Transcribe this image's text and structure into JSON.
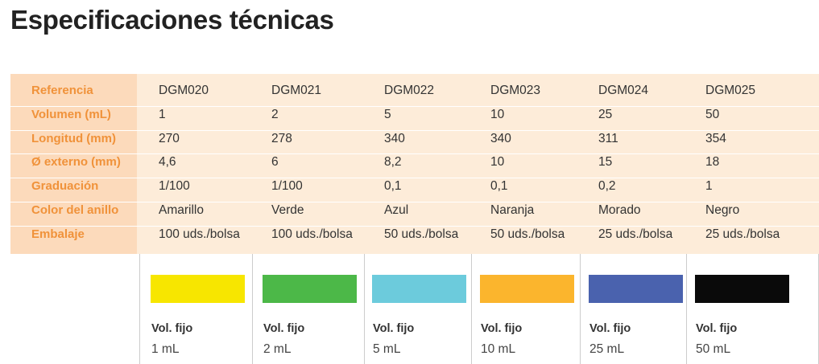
{
  "title": "Especificaciones técnicas",
  "table": {
    "rows": [
      {
        "label": "Referencia",
        "values": [
          "DGM020",
          "DGM021",
          "DGM022",
          "DGM023",
          "DGM024",
          "DGM025"
        ]
      },
      {
        "label": "Volumen (mL)",
        "values": [
          "1",
          "2",
          "5",
          "10",
          "25",
          "50"
        ]
      },
      {
        "label": "Longitud (mm)",
        "values": [
          "270",
          "278",
          "340",
          "340",
          "311",
          "354"
        ]
      },
      {
        "label": "Ø externo (mm)",
        "values": [
          "4,6",
          "6",
          "8,2",
          "10",
          "15",
          "18"
        ]
      },
      {
        "label": "Graduación",
        "values": [
          "1/100",
          "1/100",
          "0,1",
          "0,1",
          "0,2",
          "1"
        ]
      },
      {
        "label": "Color del anillo",
        "values": [
          "Amarillo",
          "Verde",
          "Azul",
          "Naranja",
          "Morado",
          "Negro"
        ]
      },
      {
        "label": "Embalaje",
        "values": [
          "100 uds./bolsa",
          "100 uds./bolsa",
          "50 uds./bolsa",
          "50 uds./bolsa",
          "25 uds./bolsa",
          "25 uds./bolsa"
        ]
      }
    ]
  },
  "products": [
    {
      "color": "#f7e600",
      "label": "Vol. fijo",
      "volume": "1 mL"
    },
    {
      "color": "#4cb848",
      "label": "Vol. fijo",
      "volume": "2 mL"
    },
    {
      "color": "#6ccbdc",
      "label": "Vol. fijo",
      "volume": "5 mL"
    },
    {
      "color": "#fbb52d",
      "label": "Vol. fijo",
      "volume": "10 mL"
    },
    {
      "color": "#4a62ae",
      "label": "Vol. fijo",
      "volume": "25 mL"
    },
    {
      "color": "#0a0a0a",
      "label": "Vol. fijo",
      "volume": "50 mL"
    }
  ]
}
